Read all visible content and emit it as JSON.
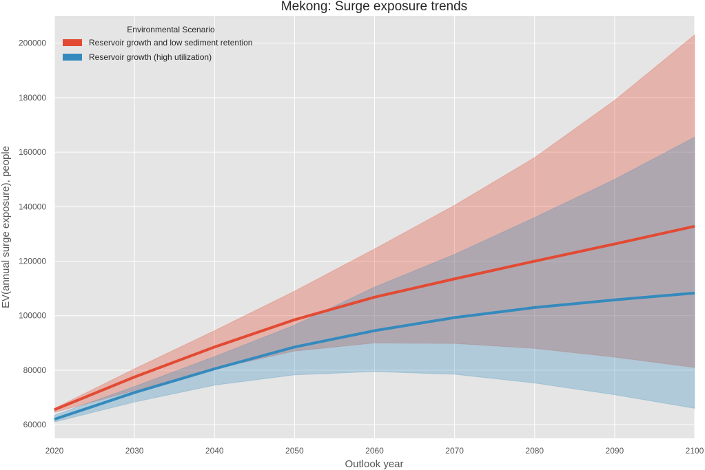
{
  "chart_data": {
    "type": "line",
    "title": "Mekong: Surge exposure trends",
    "xlabel": "Outlook year",
    "ylabel": "EV(annual surge exposure), people",
    "xlim": [
      2020,
      2100
    ],
    "ylim": [
      55000,
      210000
    ],
    "x_ticks": [
      2020,
      2030,
      2040,
      2050,
      2060,
      2070,
      2080,
      2090,
      2100
    ],
    "y_ticks": [
      60000,
      80000,
      100000,
      120000,
      140000,
      160000,
      180000,
      200000
    ],
    "grid": true,
    "legend": {
      "title": "Environmental Scenario",
      "placement": "top-left"
    },
    "x": [
      2020,
      2030,
      2040,
      2050,
      2060,
      2070,
      2080,
      2090,
      2100
    ],
    "series": [
      {
        "name": "Reservoir growth and low sediment retention",
        "color": "#e24a33",
        "band_color": "#f0a598",
        "values": [
          65500,
          77500,
          88500,
          98500,
          106800,
          113500,
          120000,
          126300,
          132800
        ],
        "lower": [
          64500,
          72500,
          80500,
          87000,
          90000,
          89800,
          88000,
          84800,
          81000
        ],
        "upper": [
          66000,
          80500,
          94500,
          109000,
          124500,
          140500,
          158000,
          179000,
          203000
        ]
      },
      {
        "name": "Reservoir growth (high utilization)",
        "color": "#348abd",
        "band_color": "#9ec8e2",
        "values": [
          62000,
          71800,
          80500,
          88500,
          94500,
          99300,
          103000,
          105800,
          108300
        ],
        "lower": [
          61000,
          68300,
          74500,
          78300,
          79500,
          78500,
          75300,
          71000,
          66000
        ],
        "upper": [
          63500,
          74000,
          85000,
          96500,
          110500,
          122500,
          136000,
          150000,
          165500
        ]
      }
    ]
  }
}
